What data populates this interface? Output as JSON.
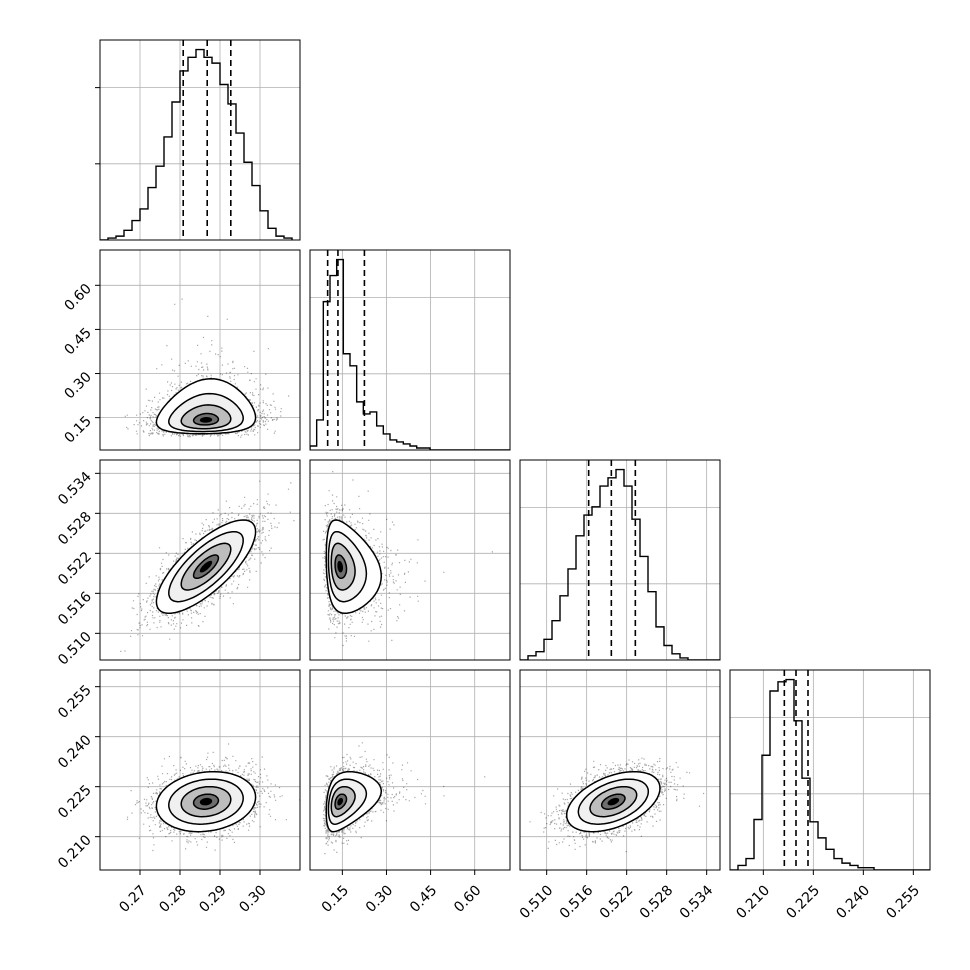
{
  "chart_data": {
    "type": "corner",
    "grid": true,
    "colors": {
      "contour": "#000000",
      "scatter": "#000000",
      "grid": "#b0b0b0",
      "quantile": "#000000"
    },
    "parameters": [
      {
        "id": "p1",
        "range": [
          0.26,
          0.31
        ],
        "ticks": [
          0.27,
          0.28,
          0.29,
          0.3
        ],
        "tick_labels": [
          "0.27",
          "0.28",
          "0.29",
          "0.30"
        ],
        "mean": 0.2865,
        "sigma": 0.0062,
        "quantiles": [
          0.2808,
          0.2868,
          0.2927
        ],
        "hist_bins": [
          0.26,
          0.262,
          0.264,
          0.266,
          0.268,
          0.27,
          0.272,
          0.274,
          0.276,
          0.278,
          0.28,
          0.282,
          0.284,
          0.286,
          0.288,
          0.29,
          0.292,
          0.294,
          0.296,
          0.298,
          0.3,
          0.302,
          0.304,
          0.306,
          0.308
        ],
        "hist_counts": [
          0.0,
          0.01,
          0.02,
          0.05,
          0.1,
          0.16,
          0.27,
          0.38,
          0.53,
          0.71,
          0.87,
          0.94,
          0.98,
          0.94,
          0.91,
          0.8,
          0.7,
          0.55,
          0.4,
          0.28,
          0.15,
          0.06,
          0.02,
          0.01
        ]
      },
      {
        "id": "p2",
        "range": [
          0.04,
          0.72
        ],
        "ticks": [
          0.15,
          0.3,
          0.45,
          0.6
        ],
        "tick_labels": [
          "0.15",
          "0.30",
          "0.45",
          "0.60"
        ],
        "mean": 0.135,
        "sigma": 0.05,
        "quantiles": [
          0.1,
          0.135,
          0.225
        ],
        "hist_bins": [
          0.04,
          0.0627,
          0.0853,
          0.108,
          0.1307,
          0.1533,
          0.176,
          0.1987,
          0.2213,
          0.244,
          0.2667,
          0.2893,
          0.312,
          0.3347,
          0.3573,
          0.38,
          0.4027,
          0.4253,
          0.448,
          0.4707,
          0.4933,
          0.516,
          0.5387,
          0.5613,
          0.584,
          0.6067,
          0.6293,
          0.652,
          0.6747,
          0.6973,
          0.72
        ],
        "hist_counts": [
          0.02,
          0.15,
          0.74,
          0.87,
          0.95,
          0.48,
          0.42,
          0.24,
          0.18,
          0.19,
          0.12,
          0.08,
          0.05,
          0.04,
          0.03,
          0.02,
          0.01,
          0.01,
          0.0,
          0.0,
          0.0,
          0.0,
          0.0,
          0.0,
          0.0,
          0.0,
          0.0,
          0.0,
          0.0,
          0.0
        ]
      },
      {
        "id": "p3",
        "range": [
          0.506,
          0.536
        ],
        "ticks": [
          0.51,
          0.516,
          0.522,
          0.528,
          0.534
        ],
        "tick_labels": [
          "0.510",
          "0.516",
          "0.522",
          "0.528",
          "0.534"
        ],
        "mean": 0.52,
        "sigma": 0.0035,
        "quantiles": [
          0.5163,
          0.5197,
          0.5233
        ],
        "hist_bins": [
          0.506,
          0.5072,
          0.5084,
          0.5096,
          0.5108,
          0.512,
          0.5132,
          0.5144,
          0.5156,
          0.5168,
          0.518,
          0.5192,
          0.5204,
          0.5216,
          0.5228,
          0.524,
          0.5252,
          0.5264,
          0.5276,
          0.5288,
          0.53,
          0.5312,
          0.5324,
          0.5336,
          0.5348,
          0.536
        ],
        "hist_counts": [
          0.0,
          0.02,
          0.04,
          0.1,
          0.19,
          0.31,
          0.44,
          0.6,
          0.7,
          0.74,
          0.84,
          0.88,
          0.92,
          0.84,
          0.68,
          0.5,
          0.33,
          0.16,
          0.07,
          0.03,
          0.01,
          0.0,
          0.0,
          0.0,
          0.0
        ]
      },
      {
        "id": "p4",
        "range": [
          0.2,
          0.26
        ],
        "ticks": [
          0.21,
          0.225,
          0.24,
          0.255
        ],
        "tick_labels": [
          "0.210",
          "0.225",
          "0.240",
          "0.255"
        ],
        "mean": 0.2205,
        "sigma": 0.0045,
        "quantiles": [
          0.2163,
          0.2198,
          0.2234
        ],
        "hist_bins": [
          0.2,
          0.2024,
          0.2048,
          0.2072,
          0.2096,
          0.212,
          0.2144,
          0.2168,
          0.2192,
          0.2216,
          0.224,
          0.2264,
          0.2288,
          0.2312,
          0.2336,
          0.236,
          0.2384,
          0.2408,
          0.2432,
          0.2456,
          0.248,
          0.2504,
          0.2528,
          0.2552,
          0.2576,
          0.26
        ],
        "hist_counts": [
          0.0,
          0.02,
          0.05,
          0.22,
          0.5,
          0.78,
          0.82,
          0.83,
          0.65,
          0.4,
          0.21,
          0.14,
          0.09,
          0.05,
          0.03,
          0.02,
          0.01,
          0.01,
          0.0,
          0.0,
          0.0,
          0.0,
          0.0,
          0.0,
          0.0
        ]
      }
    ],
    "correlations": {
      "p2_p1": 0.1,
      "p3_p1": 0.75,
      "p3_p2": -0.2,
      "p4_p1": 0.15,
      "p4_p2": 0.35,
      "p4_p3": 0.45
    },
    "contour_levels_sigma": [
      0.5,
      1.0,
      1.5,
      2.0
    ]
  }
}
